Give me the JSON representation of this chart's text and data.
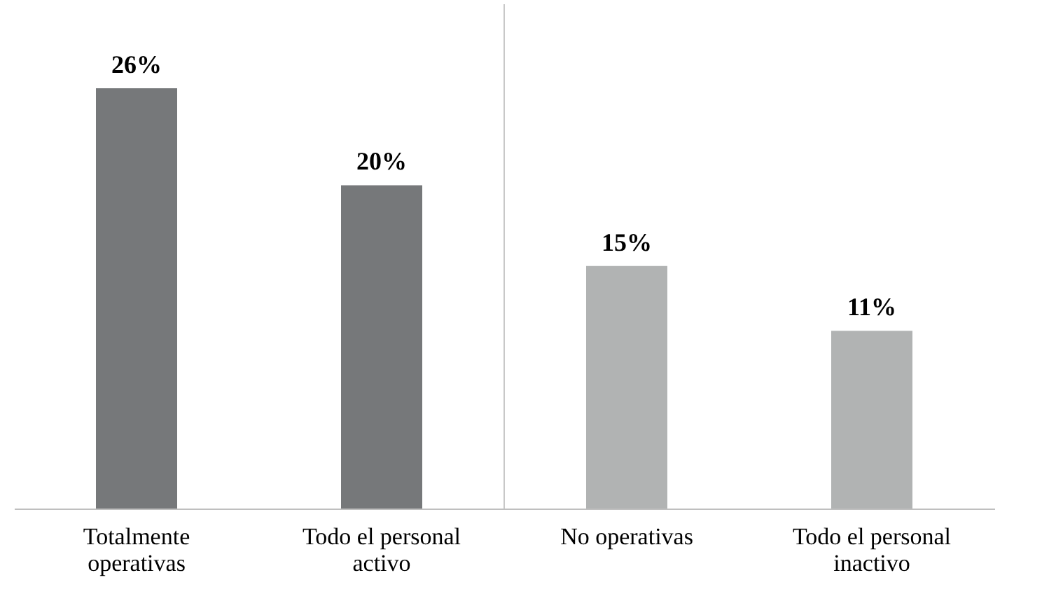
{
  "chart_data": {
    "type": "bar",
    "categories": [
      "Totalmente operativas",
      "Todo el personal activo",
      "No operativas",
      "Todo el personal inactivo"
    ],
    "values": [
      26,
      20,
      15,
      11
    ],
    "colors": [
      "#76787a",
      "#76787a",
      "#b1b3b3",
      "#b1b3b3"
    ],
    "value_labels": [
      "26%",
      "20%",
      "15%",
      "11%"
    ]
  }
}
